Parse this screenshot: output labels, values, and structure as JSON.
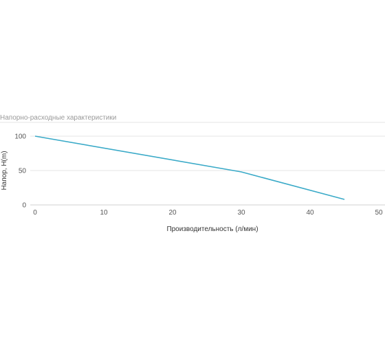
{
  "chart_data": {
    "type": "line",
    "title": "Напорно-расходные характеристики",
    "xlabel": "Производительность (л/мин)",
    "ylabel": "Напор, H(m)",
    "xlim": [
      0,
      50
    ],
    "ylim": [
      0,
      100
    ],
    "xticks": [
      0,
      10,
      20,
      30,
      40,
      50
    ],
    "yticks": [
      0,
      50,
      100
    ],
    "grid": true,
    "series": [
      {
        "color": "#3aaac8",
        "x": [
          0,
          30,
          45
        ],
        "y": [
          100,
          48,
          8
        ]
      }
    ]
  }
}
